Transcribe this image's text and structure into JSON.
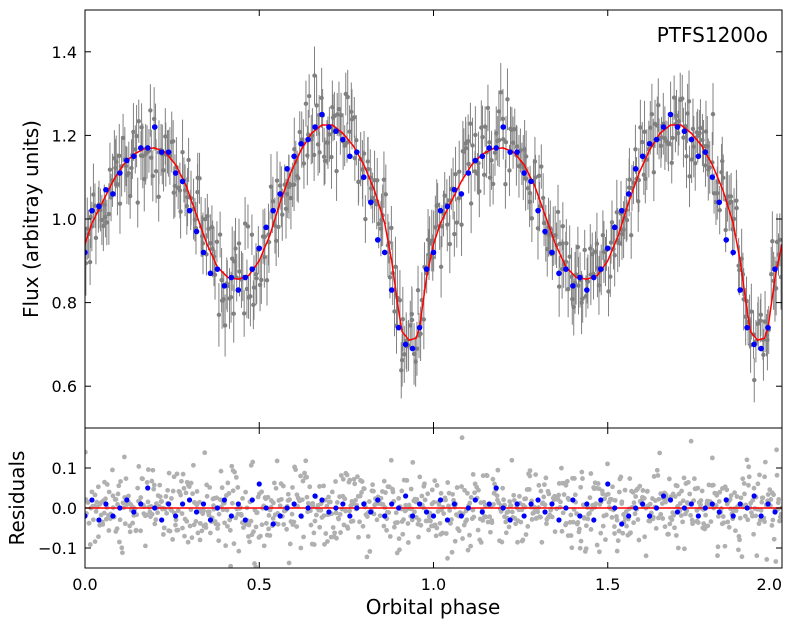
{
  "chart_data": {
    "type": "scatter",
    "title": "",
    "xlabel": "Orbital phase",
    "xlim": [
      0.0,
      2.0
    ],
    "x_ticks": [
      {
        "value": 0.0,
        "label": "0.0"
      },
      {
        "value": 0.5,
        "label": "0.5"
      },
      {
        "value": 1.0,
        "label": "1.0"
      },
      {
        "value": 1.5,
        "label": "1.5"
      },
      {
        "value": 2.0,
        "label": "2.0"
      }
    ],
    "colors": {
      "raw": "#808080",
      "residual_raw": "#b0b0b0",
      "binned": "#0000ff",
      "model": "#ff0000",
      "axes": "#000000"
    },
    "panels": [
      {
        "id": "flux",
        "ylabel": "Flux (arbitray units)",
        "ylim": [
          0.5,
          1.5
        ],
        "y_ticks": [
          {
            "value": 0.6,
            "label": "0.6"
          },
          {
            "value": 0.8,
            "label": "0.8"
          },
          {
            "value": 1.0,
            "label": "1.0"
          },
          {
            "value": 1.2,
            "label": "1.2"
          },
          {
            "value": 1.4,
            "label": "1.4"
          }
        ],
        "annotation": "PTFS1200o",
        "model_phase": [
          0.0,
          0.02,
          0.05,
          0.08,
          0.11,
          0.14,
          0.17,
          0.2,
          0.23,
          0.26,
          0.29,
          0.32,
          0.35,
          0.38,
          0.41,
          0.44,
          0.47,
          0.5,
          0.53,
          0.56,
          0.59,
          0.62,
          0.65,
          0.68,
          0.71,
          0.74,
          0.77,
          0.8,
          0.83,
          0.86,
          0.88,
          0.9,
          0.91,
          0.93,
          0.95,
          0.96,
          0.98,
          1.0
        ],
        "model_flux": [
          0.94,
          0.99,
          1.04,
          1.09,
          1.13,
          1.155,
          1.168,
          1.17,
          1.16,
          1.13,
          1.08,
          1.01,
          0.94,
          0.885,
          0.86,
          0.856,
          0.865,
          0.9,
          0.96,
          1.04,
          1.11,
          1.165,
          1.205,
          1.225,
          1.225,
          1.205,
          1.175,
          1.13,
          1.07,
          0.99,
          0.9,
          0.78,
          0.73,
          0.71,
          0.715,
          0.74,
          0.86,
          0.94
        ],
        "binned": {
          "phase": [
            0.0,
            0.02,
            0.04,
            0.06,
            0.08,
            0.1,
            0.12,
            0.14,
            0.16,
            0.18,
            0.2,
            0.22,
            0.24,
            0.26,
            0.28,
            0.3,
            0.32,
            0.34,
            0.36,
            0.38,
            0.4,
            0.42,
            0.44,
            0.46,
            0.48,
            0.5,
            0.52,
            0.54,
            0.56,
            0.58,
            0.6,
            0.62,
            0.64,
            0.66,
            0.68,
            0.7,
            0.72,
            0.74,
            0.76,
            0.78,
            0.8,
            0.82,
            0.84,
            0.86,
            0.88,
            0.9,
            0.92,
            0.94,
            0.96,
            0.98
          ],
          "flux": [
            0.92,
            1.02,
            1.03,
            1.07,
            1.06,
            1.11,
            1.14,
            1.15,
            1.17,
            1.17,
            1.22,
            1.16,
            1.16,
            1.11,
            1.09,
            1.02,
            0.97,
            0.92,
            0.87,
            0.88,
            0.84,
            0.86,
            0.83,
            0.86,
            0.88,
            0.93,
            0.98,
            1.02,
            1.06,
            1.12,
            1.15,
            1.18,
            1.19,
            1.22,
            1.25,
            1.22,
            1.21,
            1.19,
            1.15,
            1.16,
            1.1,
            1.04,
            0.95,
            0.92,
            0.83,
            0.74,
            0.7,
            0.69,
            0.74,
            0.88
          ]
        },
        "raw": {
          "n_per_cycle": 260,
          "scatter_sigma": 0.05,
          "error_bar": 0.06
        }
      },
      {
        "id": "residuals",
        "ylabel": "Residuals",
        "ylim": [
          -0.15,
          0.2
        ],
        "y_ticks": [
          {
            "value": -0.1,
            "label": "−0.1"
          },
          {
            "value": 0.0,
            "label": "0.0"
          },
          {
            "value": 0.1,
            "label": "0.1"
          }
        ],
        "model_value": 0.0,
        "binned": {
          "phase": [
            0.0,
            0.02,
            0.04,
            0.06,
            0.08,
            0.1,
            0.12,
            0.14,
            0.16,
            0.18,
            0.2,
            0.22,
            0.24,
            0.26,
            0.28,
            0.3,
            0.32,
            0.34,
            0.36,
            0.38,
            0.4,
            0.42,
            0.44,
            0.46,
            0.48,
            0.5,
            0.52,
            0.54,
            0.56,
            0.58,
            0.6,
            0.62,
            0.64,
            0.66,
            0.68,
            0.7,
            0.72,
            0.74,
            0.76,
            0.78,
            0.8,
            0.82,
            0.84,
            0.86,
            0.88,
            0.9,
            0.92,
            0.94,
            0.96,
            0.98
          ],
          "residual": [
            -0.02,
            0.02,
            -0.03,
            0.01,
            -0.02,
            0.0,
            0.02,
            -0.01,
            0.01,
            0.05,
            0.0,
            -0.03,
            0.01,
            -0.02,
            0.01,
            0.02,
            -0.01,
            0.01,
            -0.03,
            0.0,
            0.02,
            -0.02,
            0.01,
            -0.03,
            0.02,
            0.06,
            0.0,
            -0.04,
            -0.02,
            0.0,
            0.01,
            -0.02,
            0.0,
            0.03,
            0.02,
            -0.01,
            0.0,
            0.01,
            -0.02,
            0.0,
            0.01,
            -0.01,
            0.02,
            -0.02,
            0.01,
            0.0,
            0.03,
            -0.02,
            0.01,
            -0.01
          ]
        },
        "raw": {
          "n_per_cycle": 260,
          "scatter_sigma": 0.05
        }
      }
    ]
  }
}
